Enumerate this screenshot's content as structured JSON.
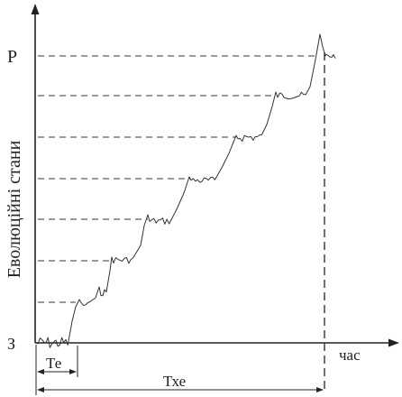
{
  "diagram": {
    "y_axis_label": "Еволюційні стани",
    "x_axis_label": "час",
    "top_state_label": "Р",
    "bottom_state_label": "З",
    "interval_short_label": "Те",
    "interval_long_label": "Тхе",
    "colors": {
      "ink": "#222222",
      "background": "#ffffff"
    }
  }
}
